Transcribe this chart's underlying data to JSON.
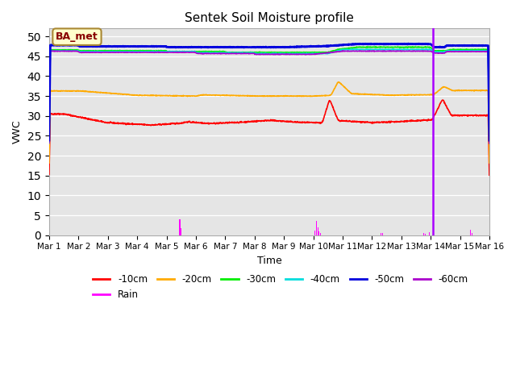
{
  "title": "Sentek Soil Moisture profile",
  "xlabel": "Time",
  "ylabel": "VWC",
  "legend_label": "BA_met",
  "ylim": [
    0,
    52
  ],
  "xlim": [
    0,
    15
  ],
  "yticks": [
    0,
    5,
    10,
    15,
    20,
    25,
    30,
    35,
    40,
    45,
    50
  ],
  "xtick_labels": [
    "Mar 1",
    "Mar 2",
    "Mar 3",
    "Mar 4",
    "Mar 5",
    "Mar 6",
    "Mar 7",
    "Mar 8",
    "Mar 9",
    "Mar 10",
    "Mar 11",
    "Mar 12",
    "Mar 13",
    "Mar 14",
    "Mar 15",
    "Mar 16"
  ],
  "colors": {
    "10cm": "#ff0000",
    "20cm": "#ffaa00",
    "30cm": "#00ee00",
    "40cm": "#00dddd",
    "50cm": "#0000dd",
    "60cm": "#aa00cc",
    "rain": "#ff00ff"
  },
  "vline_color": "#aa00ff",
  "vline_x": 13.07,
  "bg_color": "#e5e5e5",
  "legend_box_color": "#ffffcc",
  "legend_box_edge": "#aa8833"
}
